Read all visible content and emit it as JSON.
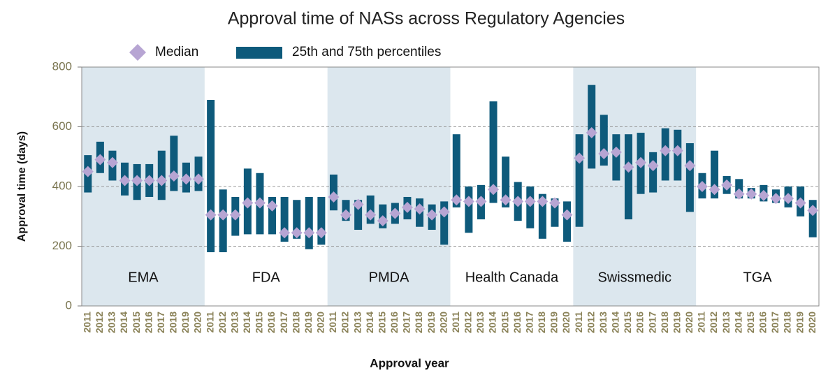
{
  "chart_data": {
    "type": "range-bar",
    "title": "Approval time of NASs across Regulatory Agencies",
    "y_label": "Approval time (days)",
    "x_label": "Approval year",
    "ylim": [
      0,
      800
    ],
    "yticks": [
      0,
      200,
      400,
      600,
      800
    ],
    "grid": true,
    "legend": {
      "median": "Median",
      "range": "25th and 75th percentiles"
    },
    "median_color": "#b7a5d3",
    "bar_color": "#0e5a7b",
    "shade_color": "#dce7ee",
    "categories": [
      "2011",
      "2012",
      "2013",
      "2014",
      "2015",
      "2016",
      "2017",
      "2018",
      "2019",
      "2020"
    ],
    "groups": [
      {
        "name": "EMA",
        "shaded": true,
        "q1": [
          380,
          445,
          420,
          370,
          355,
          365,
          355,
          385,
          380,
          385
        ],
        "median": [
          450,
          490,
          480,
          420,
          420,
          420,
          420,
          435,
          425,
          425
        ],
        "q3": [
          505,
          550,
          520,
          480,
          475,
          475,
          520,
          570,
          480,
          500
        ]
      },
      {
        "name": "FDA",
        "shaded": false,
        "q1": [
          180,
          180,
          235,
          240,
          240,
          240,
          215,
          225,
          190,
          205
        ],
        "median": [
          305,
          305,
          305,
          345,
          345,
          335,
          245,
          245,
          245,
          245
        ],
        "q3": [
          690,
          390,
          365,
          460,
          445,
          365,
          365,
          355,
          365,
          365
        ]
      },
      {
        "name": "PMDA",
        "shaded": true,
        "q1": [
          320,
          285,
          255,
          275,
          260,
          275,
          290,
          265,
          255,
          205
        ],
        "median": [
          365,
          305,
          340,
          305,
          285,
          310,
          330,
          325,
          305,
          315
        ],
        "q3": [
          440,
          355,
          355,
          370,
          340,
          345,
          365,
          360,
          340,
          350
        ]
      },
      {
        "name": "Health Canada",
        "shaded": false,
        "q1": [
          330,
          245,
          290,
          345,
          330,
          285,
          260,
          225,
          265,
          215
        ],
        "median": [
          355,
          350,
          350,
          390,
          355,
          350,
          350,
          350,
          345,
          305
        ],
        "q3": [
          575,
          400,
          405,
          685,
          500,
          415,
          400,
          375,
          360,
          350
        ]
      },
      {
        "name": "Swissmedic",
        "shaded": true,
        "q1": [
          265,
          460,
          470,
          420,
          290,
          375,
          380,
          420,
          420,
          315
        ],
        "median": [
          495,
          580,
          510,
          515,
          465,
          480,
          470,
          520,
          520,
          470
        ],
        "q3": [
          575,
          740,
          640,
          575,
          575,
          580,
          515,
          595,
          590,
          545
        ]
      },
      {
        "name": "TGA",
        "shaded": false,
        "q1": [
          360,
          360,
          375,
          360,
          360,
          350,
          345,
          330,
          300,
          230
        ],
        "median": [
          400,
          390,
          405,
          375,
          375,
          370,
          360,
          360,
          345,
          320
        ],
        "q3": [
          445,
          520,
          435,
          425,
          395,
          405,
          390,
          400,
          400,
          355
        ]
      }
    ]
  }
}
